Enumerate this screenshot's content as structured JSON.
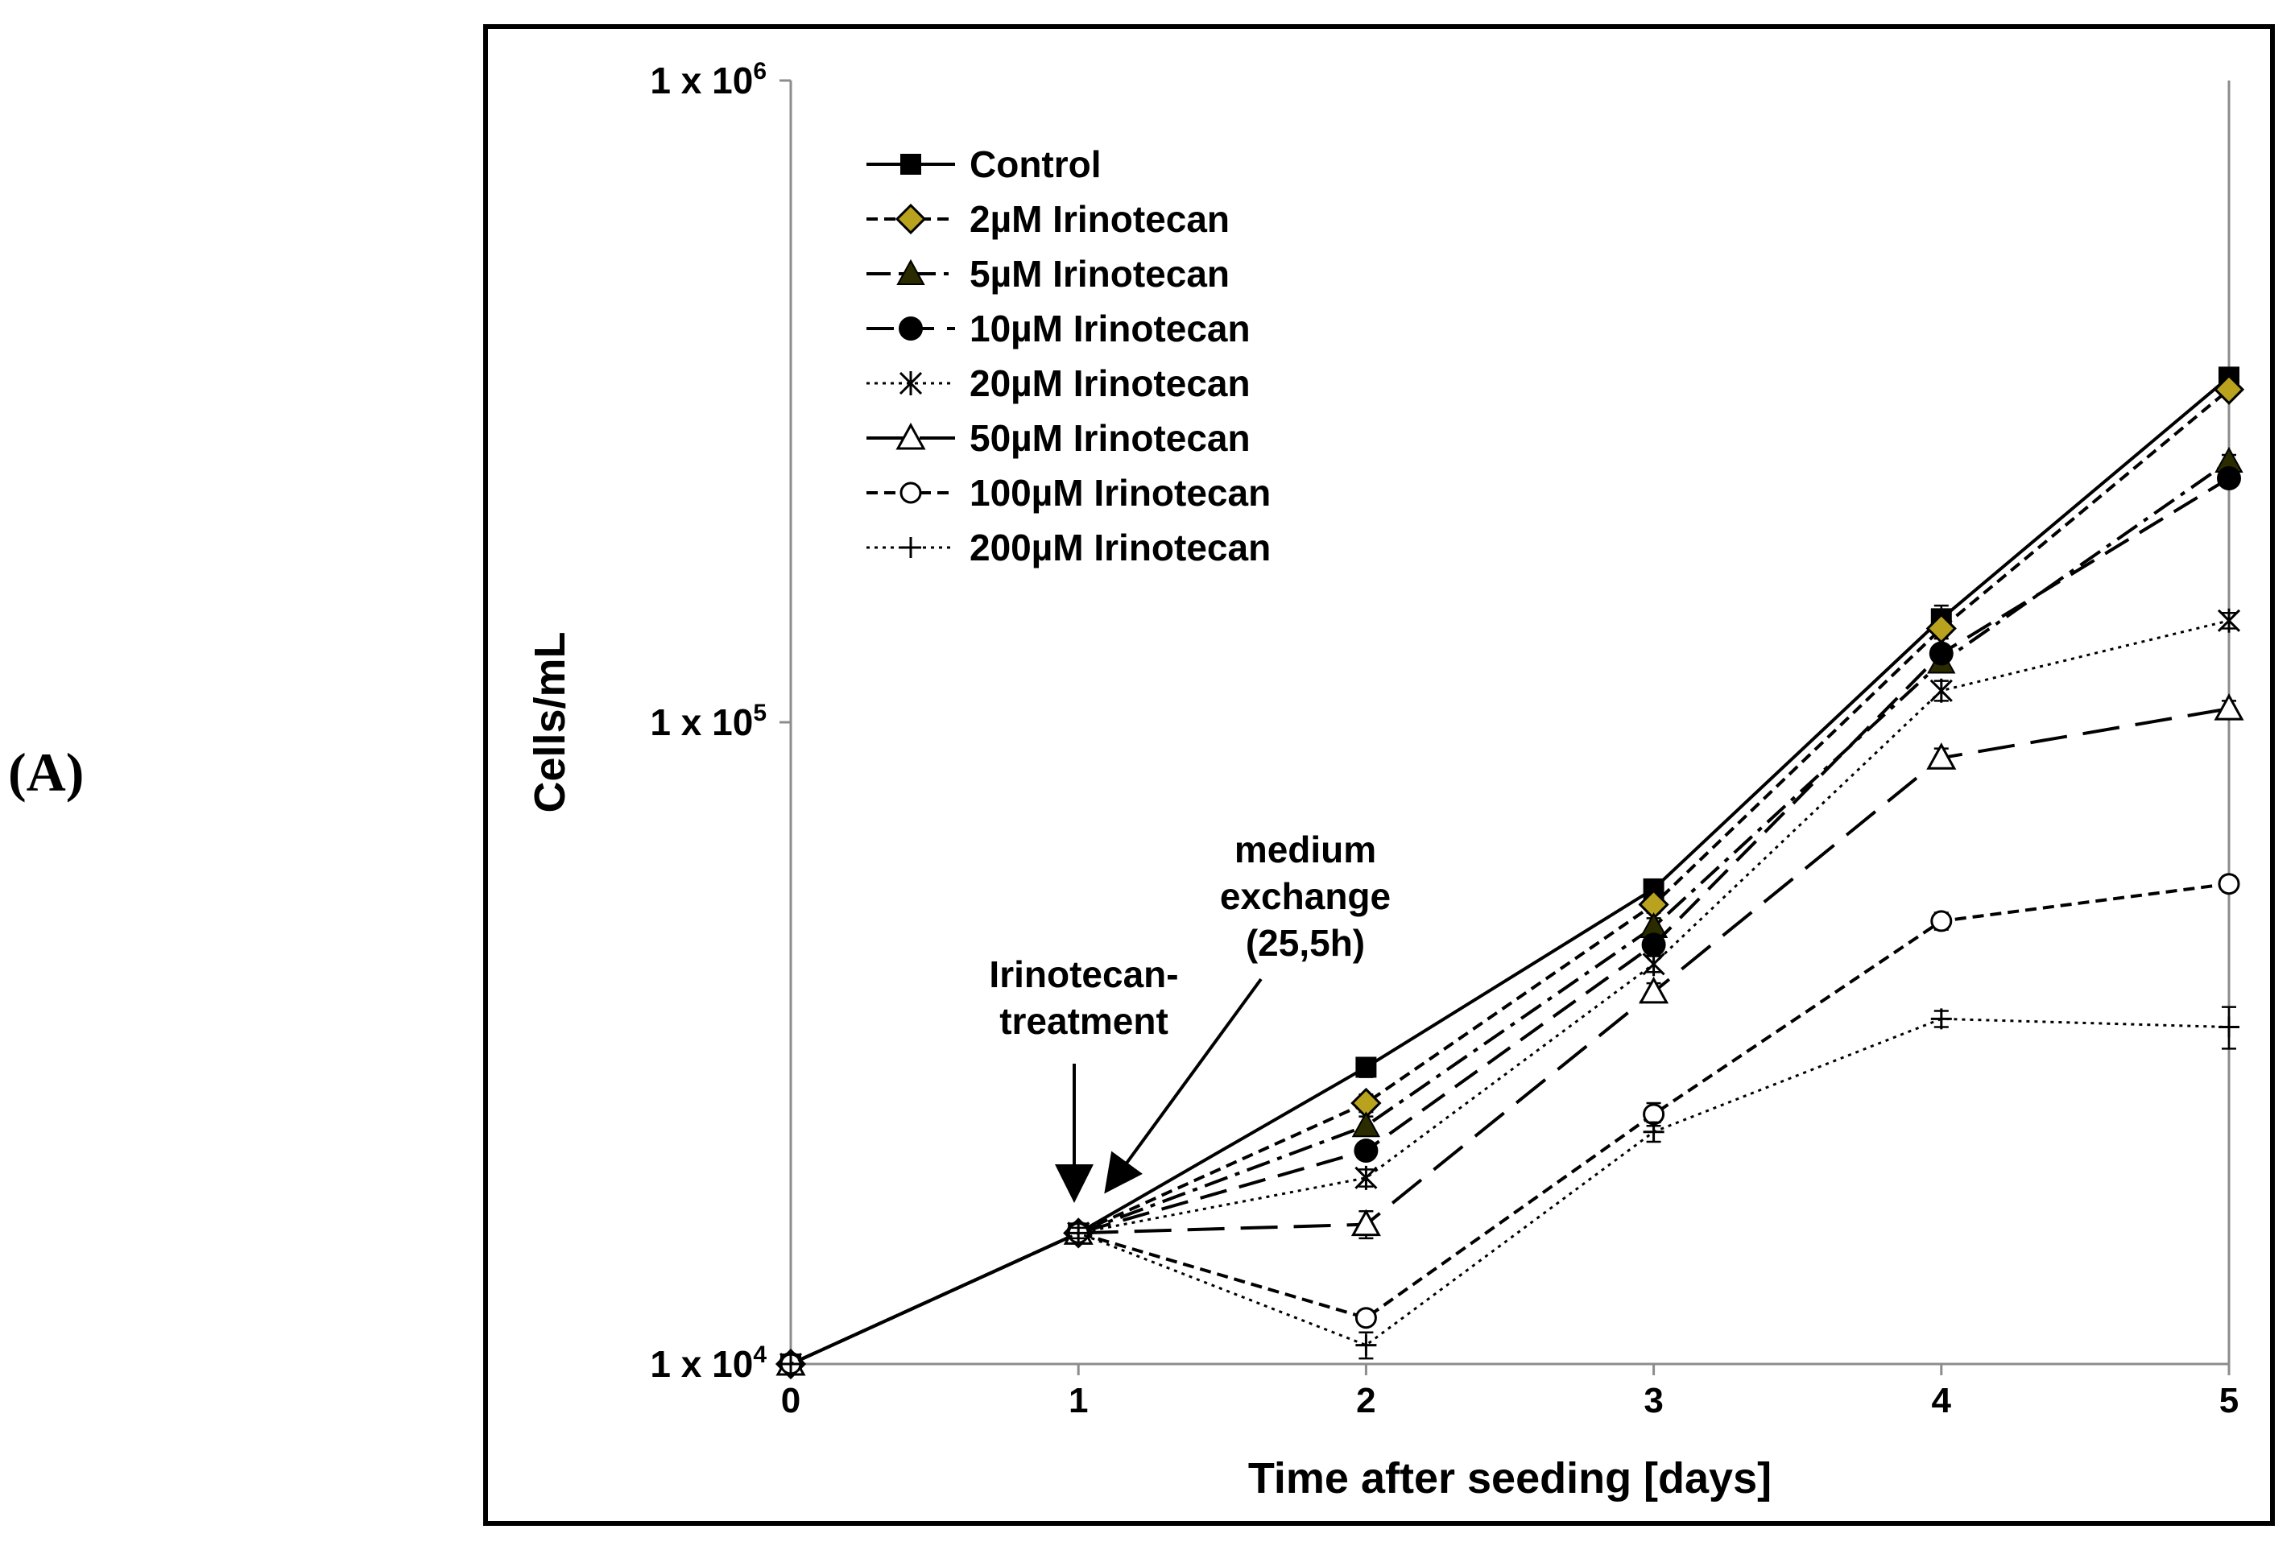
{
  "panel_label": "(A)",
  "chart_data": {
    "type": "line",
    "xlabel": "Time after seeding [days]",
    "ylabel": "Cells/mL",
    "x": [
      0,
      1,
      2,
      3,
      4,
      5
    ],
    "xlim": [
      0,
      5
    ],
    "ylim": [
      10000,
      1000000
    ],
    "yscale": "log",
    "ytick_labels": [
      {
        "value": 1000000,
        "base": "1 x 10",
        "exp": "6"
      },
      {
        "value": 100000,
        "base": "1 x 10",
        "exp": "5"
      },
      {
        "value": 10000,
        "base": "1 x 10",
        "exp": "4"
      }
    ],
    "xtick_labels": [
      "0",
      "1",
      "2",
      "3",
      "4",
      "5"
    ],
    "grid": false,
    "legend_position": "top-left",
    "series": [
      {
        "name": "Control",
        "values": [
          10000,
          16000,
          29000,
          55000,
          145000,
          345000
        ],
        "err": [
          0,
          300,
          1000,
          1500,
          7000,
          8000
        ],
        "marker": "square",
        "dash": "solid",
        "color": "#000000"
      },
      {
        "name": "2µM Irinotecan",
        "values": [
          10000,
          16000,
          25500,
          52000,
          140000,
          330000
        ],
        "err": [
          0,
          300,
          800,
          1500,
          5000,
          8000
        ],
        "marker": "diamond",
        "dash": "dashed",
        "color": "#000000",
        "fill": "#b8a21e"
      },
      {
        "name": "5µM Irinotecan",
        "values": [
          10000,
          16000,
          23500,
          48000,
          124000,
          255000
        ],
        "err": [
          0,
          300,
          800,
          1500,
          4000,
          6000
        ],
        "marker": "triangle",
        "dash": "dashdot",
        "color": "#000000"
      },
      {
        "name": "10µM Irinotecan",
        "values": [
          10000,
          16000,
          21500,
          45000,
          128000,
          240000
        ],
        "err": [
          0,
          300,
          600,
          1500,
          4000,
          5000
        ],
        "marker": "circle",
        "dash": "longdash",
        "color": "#000000"
      },
      {
        "name": "20µM Irinotecan",
        "values": [
          10000,
          16000,
          19500,
          42000,
          112000,
          144000
        ],
        "err": [
          0,
          300,
          600,
          1200,
          4000,
          4000
        ],
        "marker": "star",
        "dash": "dotted",
        "color": "#000000"
      },
      {
        "name": "50µM Irinotecan",
        "values": [
          10000,
          16000,
          16500,
          38000,
          88000,
          105000
        ],
        "err": [
          0,
          300,
          800,
          1200,
          3000,
          3000
        ],
        "marker": "triangle-open",
        "dash": "longdash2",
        "color": "#000000"
      },
      {
        "name": "100µM Irinotecan",
        "values": [
          10000,
          16000,
          11800,
          24500,
          49000,
          56000
        ],
        "err": [
          0,
          300,
          300,
          1000,
          1500,
          1500
        ],
        "marker": "circle-open",
        "dash": "dashed",
        "color": "#000000"
      },
      {
        "name": "200µM Irinotecan",
        "values": [
          10000,
          16000,
          10700,
          23000,
          34500,
          33500
        ],
        "err": [
          0,
          300,
          500,
          800,
          1000,
          2500
        ],
        "marker": "plus",
        "dash": "dotted",
        "color": "#000000"
      }
    ],
    "annotations": {
      "irinotecan": [
        "Irinotecan-",
        "treatment"
      ],
      "medium": [
        "medium",
        "exchange",
        "(25,5h)"
      ]
    }
  }
}
